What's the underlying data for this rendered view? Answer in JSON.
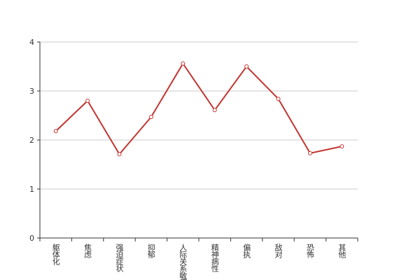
{
  "chart_data": {
    "type": "line",
    "categories": [
      "躯体化",
      "焦虑",
      "强迫症状",
      "抑郁",
      "人际关系敏感",
      "精神病性",
      "偏执",
      "敌对",
      "恐怖",
      "其他"
    ],
    "values": [
      2.18,
      2.8,
      1.71,
      2.47,
      3.56,
      2.61,
      3.5,
      2.84,
      1.73,
      1.87
    ],
    "color": "#c23531",
    "ylim": [
      0,
      4
    ],
    "yticks": [
      0,
      1,
      2,
      3,
      4
    ],
    "grid": true
  }
}
